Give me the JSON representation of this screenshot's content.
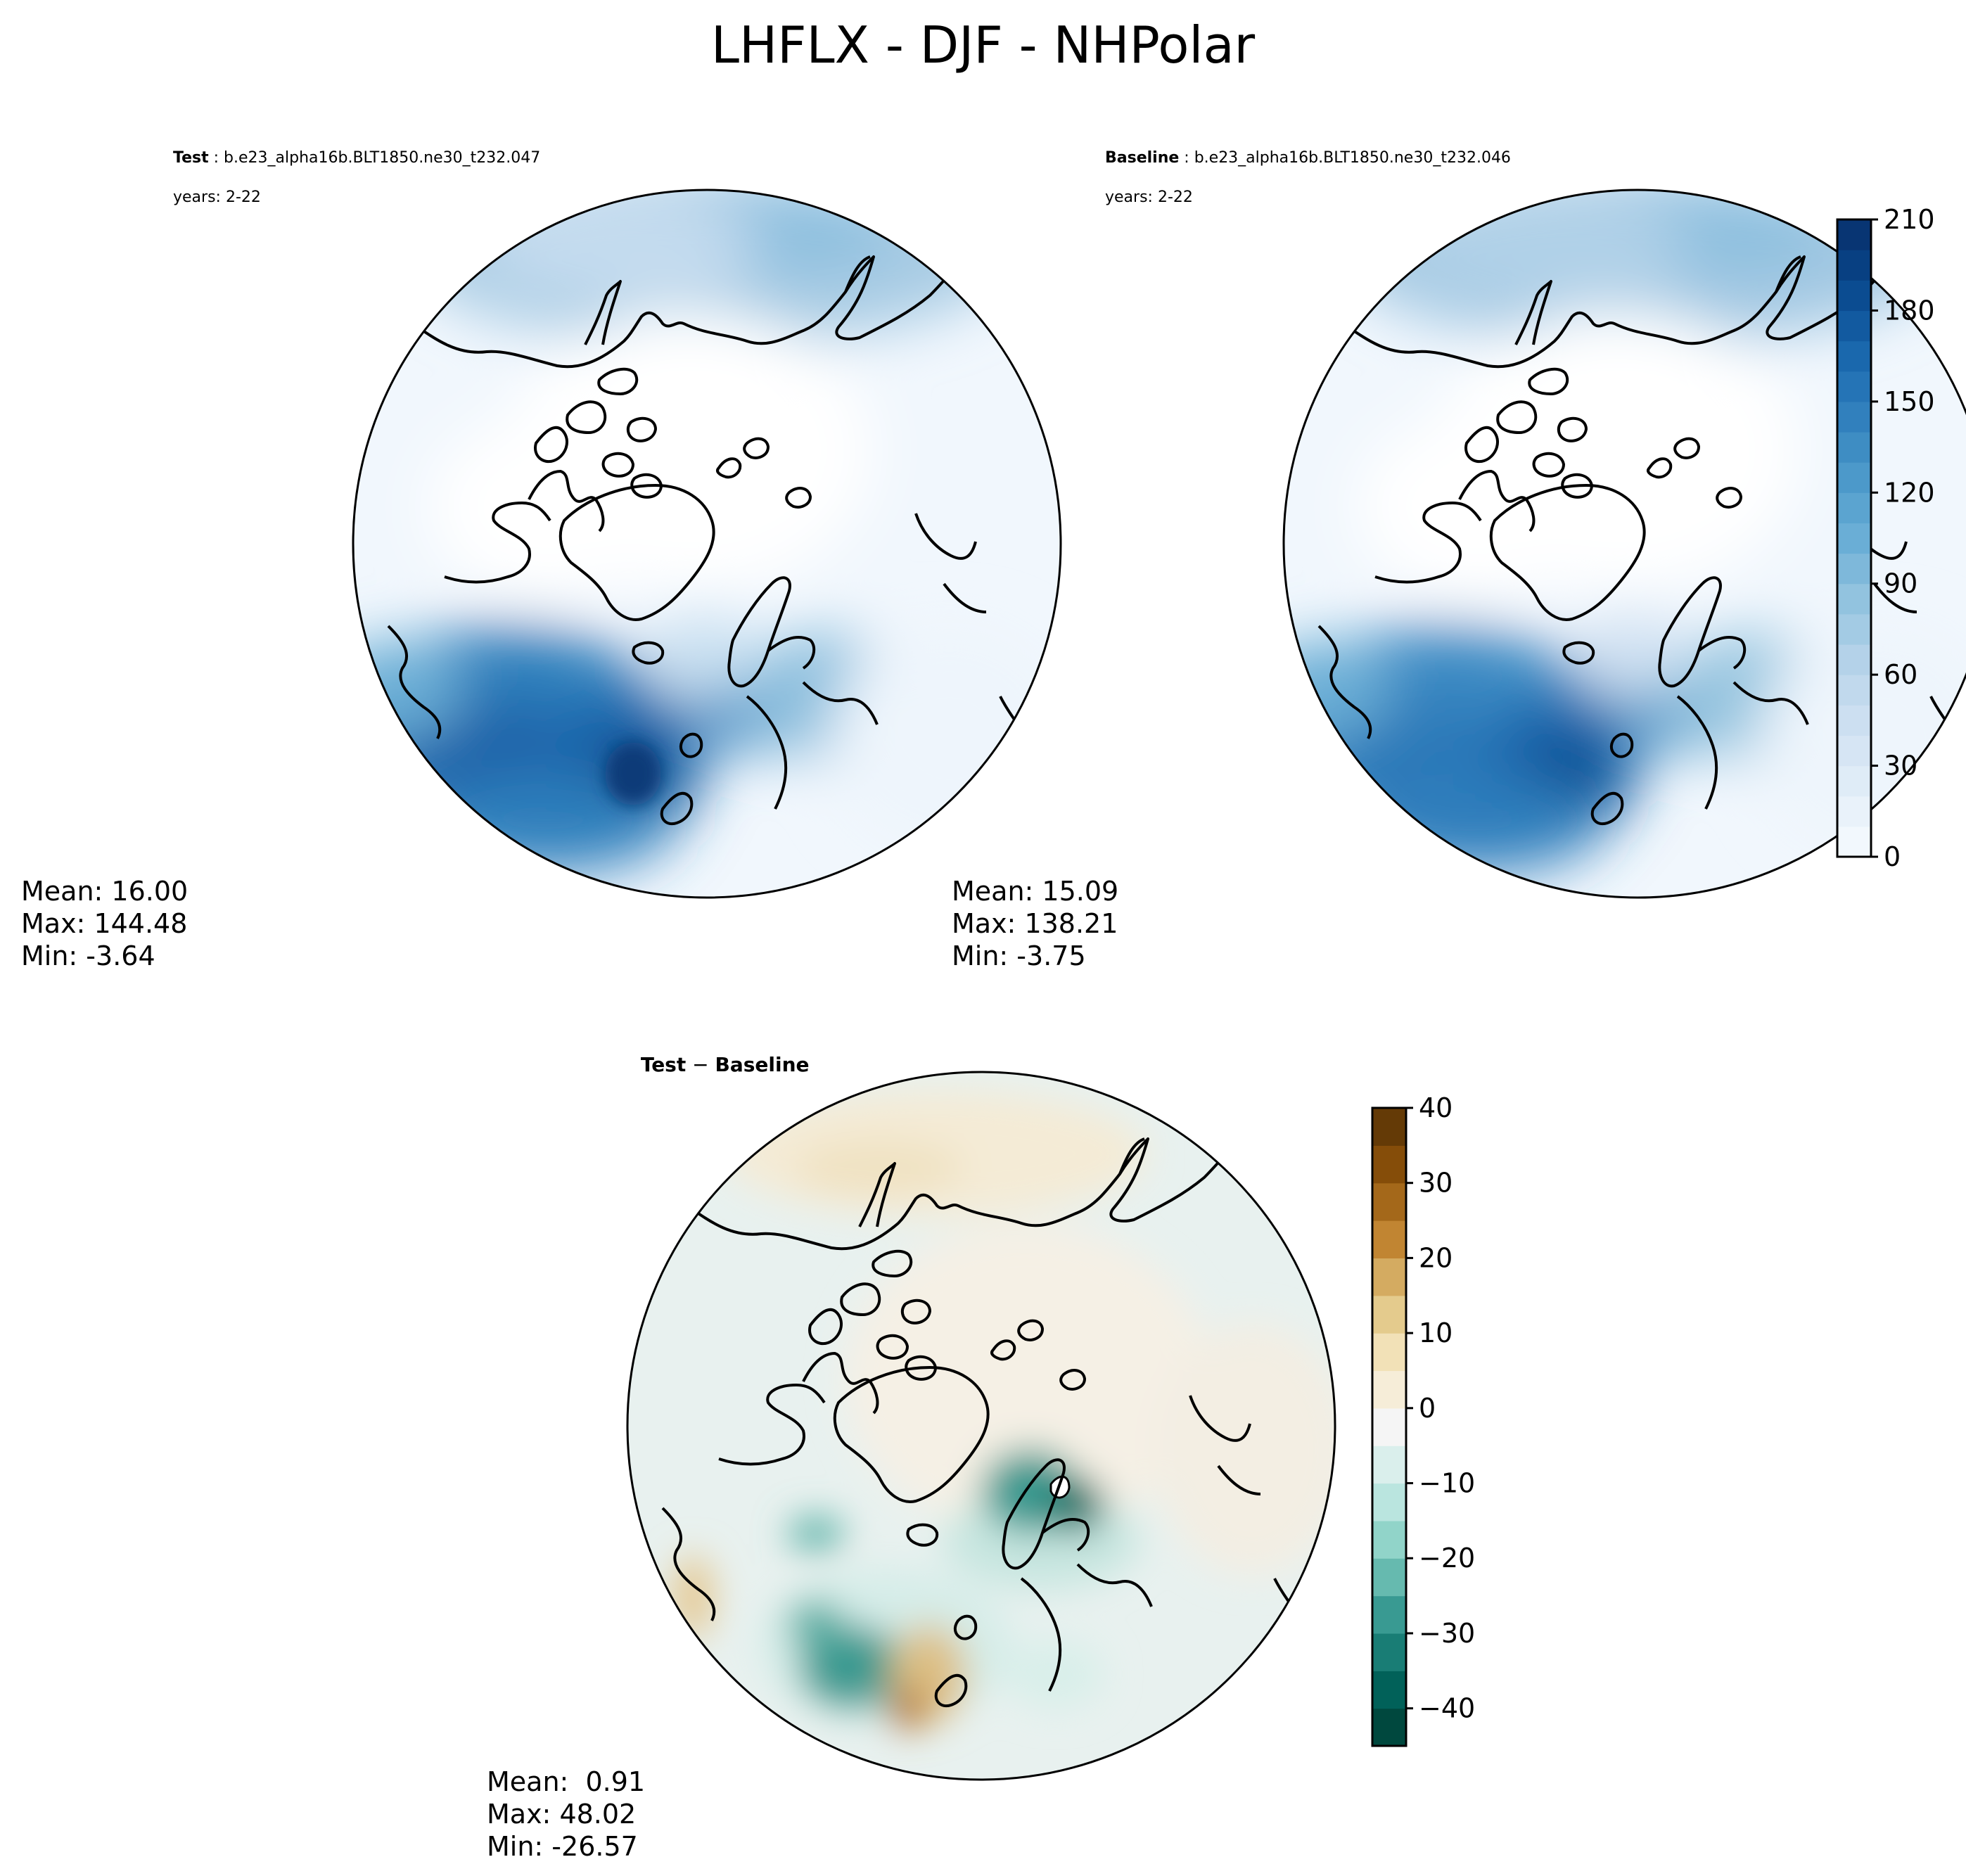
{
  "figure": {
    "title": "LHFLX - DJF - NHPolar"
  },
  "panels": [
    {
      "id": "test",
      "label_bold": "Test",
      "label_rest": " : b.e23_alpha16b.BLT1850.ne30_t232.047",
      "years": "years: 2-22",
      "mean": "Mean: 16.00",
      "max": "Max: 144.48",
      "min": "Min: -3.64"
    },
    {
      "id": "baseline",
      "label_bold": "Baseline",
      "label_rest": " : b.e23_alpha16b.BLT1850.ne30_t232.046",
      "years": "years: 2-22",
      "mean": "Mean: 15.09",
      "max": "Max: 138.21",
      "min": "Min: -3.75"
    },
    {
      "id": "difference",
      "label_bold": "Test",
      "label_rest": " − ",
      "label_bold2": "Baseline",
      "mean": "Mean:  0.91",
      "max": "Max: 48.02",
      "min": "Min: -26.57"
    }
  ],
  "colorbars": {
    "main": {
      "colormap": "Blues",
      "ticks": [
        "0",
        "30",
        "60",
        "90",
        "120",
        "150",
        "180",
        "210"
      ],
      "range": [
        0,
        210
      ],
      "colors": [
        "#f7fbff",
        "#e3eef8",
        "#d0e1f2",
        "#b7d4ea",
        "#94c4df",
        "#6aaed6",
        "#4a98c9",
        "#2e7ebc",
        "#1764ab",
        "#08468b",
        "#08306b"
      ]
    },
    "diff": {
      "colormap": "BrBG",
      "ticks": [
        "40",
        "30",
        "20",
        "10",
        "0",
        "−10",
        "−20",
        "−30",
        "−40"
      ],
      "range": [
        -45,
        40
      ],
      "colors": [
        "#003c30",
        "#01665e",
        "#35978f",
        "#80cdc1",
        "#c7eae5",
        "#f5f5f5",
        "#f6e8c3",
        "#dfc27d",
        "#bf812d",
        "#8c510a",
        "#543005"
      ]
    }
  }
}
